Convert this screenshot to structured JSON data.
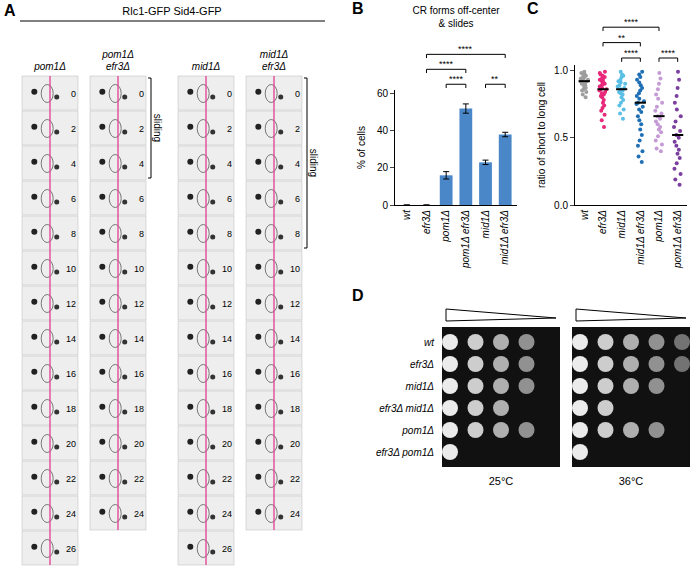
{
  "panel_labels": [
    "A",
    "B",
    "C",
    "D"
  ],
  "panel_A": {
    "title": "Rlc1-GFP Sid4-GFP",
    "bracket_label": "sliding",
    "columns": [
      {
        "label": "pom1Δ",
        "frames": [
          0,
          2,
          4,
          6,
          8,
          10,
          12,
          14,
          16,
          18,
          20,
          22,
          24,
          26
        ]
      },
      {
        "label": "pom1Δ efr3Δ",
        "frames": [
          0,
          2,
          4,
          6,
          8,
          10,
          12,
          14,
          16,
          18,
          20,
          22,
          24
        ],
        "sliding": [
          0,
          4
        ]
      },
      {
        "label": "mid1Δ",
        "frames": [
          0,
          2,
          4,
          6,
          8,
          10,
          12,
          14,
          16,
          18,
          20,
          22,
          24,
          26
        ]
      },
      {
        "label": "mid1Δ efr3Δ",
        "frames": [
          0,
          2,
          4,
          6,
          8,
          10,
          12,
          14,
          16,
          18,
          20,
          22,
          24
        ],
        "sliding": [
          0,
          8
        ]
      }
    ]
  },
  "chart_data": [
    {
      "type": "bar",
      "title": "CR forms off-center & slides",
      "y_label": "% of cells",
      "categories": [
        "wt",
        "efr3Δ",
        "pom1Δ",
        "pom1Δ efr3Δ",
        "mid1Δ",
        "mid1Δ efr3Δ"
      ],
      "values": [
        0,
        0,
        16,
        52,
        23,
        38
      ],
      "errors": [
        0,
        0,
        2,
        2.5,
        1.2,
        1.2
      ],
      "color": "#4a87c8",
      "ylim": [
        0,
        62
      ],
      "yticks": [
        0,
        20,
        40,
        60
      ],
      "grid": false,
      "comparisons": [
        {
          "from": "pom1Δ",
          "to": "pom1Δ efr3Δ",
          "label": "****"
        },
        {
          "from": "mid1Δ",
          "to": "mid1Δ efr3Δ",
          "label": "**"
        },
        {
          "from": "efr3Δ",
          "to": "pom1Δ efr3Δ",
          "label": "****"
        },
        {
          "from": "efr3Δ",
          "to": "mid1Δ efr3Δ",
          "label": "****"
        }
      ]
    },
    {
      "type": "scatter",
      "marker": "circle",
      "y_label": "ratio of short to long cell",
      "categories": [
        "wt",
        "efr3Δ",
        "mid1Δ",
        "mid1Δ efr3Δ",
        "pom1Δ",
        "pom1Δ efr3Δ"
      ],
      "colors": [
        "#9e9e9e",
        "#e8287a",
        "#5bbfe6",
        "#1f6fb5",
        "#c59bd6",
        "#7b3fa0"
      ],
      "values": [
        [
          0.99,
          0.98,
          0.97,
          0.97,
          0.96,
          0.95,
          0.95,
          0.94,
          0.94,
          0.93,
          0.93,
          0.92,
          0.92,
          0.91,
          0.91,
          0.9,
          0.9,
          0.89,
          0.88,
          0.87,
          0.86,
          0.85,
          0.84,
          0.82,
          0.8
        ],
        [
          0.99,
          0.98,
          0.97,
          0.96,
          0.95,
          0.94,
          0.93,
          0.93,
          0.92,
          0.91,
          0.9,
          0.9,
          0.89,
          0.88,
          0.87,
          0.86,
          0.86,
          0.85,
          0.84,
          0.83,
          0.82,
          0.81,
          0.8,
          0.78,
          0.76,
          0.74,
          0.72,
          0.7,
          0.67,
          0.63,
          0.58
        ],
        [
          0.99,
          0.97,
          0.96,
          0.95,
          0.93,
          0.92,
          0.91,
          0.9,
          0.89,
          0.88,
          0.87,
          0.86,
          0.85,
          0.84,
          0.83,
          0.82,
          0.8,
          0.78,
          0.76,
          0.74,
          0.71,
          0.68,
          0.64
        ],
        [
          0.99,
          0.97,
          0.95,
          0.93,
          0.91,
          0.89,
          0.87,
          0.85,
          0.83,
          0.81,
          0.79,
          0.77,
          0.76,
          0.75,
          0.73,
          0.71,
          0.69,
          0.66,
          0.63,
          0.6,
          0.56,
          0.52,
          0.48,
          0.44,
          0.4,
          0.36,
          0.32
        ],
        [
          0.98,
          0.94,
          0.9,
          0.86,
          0.82,
          0.79,
          0.76,
          0.73,
          0.7,
          0.68,
          0.66,
          0.64,
          0.62,
          0.6,
          0.58,
          0.56,
          0.54,
          0.51,
          0.48,
          0.45,
          0.42,
          0.4
        ],
        [
          0.99,
          0.93,
          0.87,
          0.81,
          0.76,
          0.71,
          0.66,
          0.62,
          0.58,
          0.55,
          0.52,
          0.5,
          0.47,
          0.44,
          0.41,
          0.38,
          0.35,
          0.31,
          0.27,
          0.23,
          0.19,
          0.15
        ]
      ],
      "medians": [
        0.92,
        0.86,
        0.86,
        0.76,
        0.66,
        0.52
      ],
      "ylim": [
        0,
        1.04
      ],
      "yticks": [
        {
          "value": 0,
          "label": "0.0"
        },
        {
          "value": 0.5,
          "label": "0.5"
        },
        {
          "value": 1,
          "label": "1.0"
        }
      ],
      "grid": false,
      "comparisons": [
        {
          "from": "pom1Δ",
          "to": "pom1Δ efr3Δ",
          "label": "****"
        },
        {
          "from": "mid1Δ",
          "to": "mid1Δ efr3Δ",
          "label": "****"
        },
        {
          "from": "efr3Δ",
          "to": "mid1Δ efr3Δ",
          "label": "**"
        },
        {
          "from": "efr3Δ",
          "to": "pom1Δ",
          "label": "****"
        }
      ]
    }
  ],
  "panel_D": {
    "dilution_spots": 5,
    "strains": [
      "wt",
      "efr3Δ",
      "mid1Δ",
      "efr3Δ mid1Δ",
      "pom1Δ",
      "efr3Δ pom1Δ"
    ],
    "plates": [
      {
        "label": "25°C",
        "spots_visible": [
          4,
          4,
          4,
          3,
          4,
          1
        ]
      },
      {
        "label": "36°C",
        "spots_visible": [
          5,
          5,
          4,
          2,
          4,
          1
        ]
      }
    ]
  }
}
